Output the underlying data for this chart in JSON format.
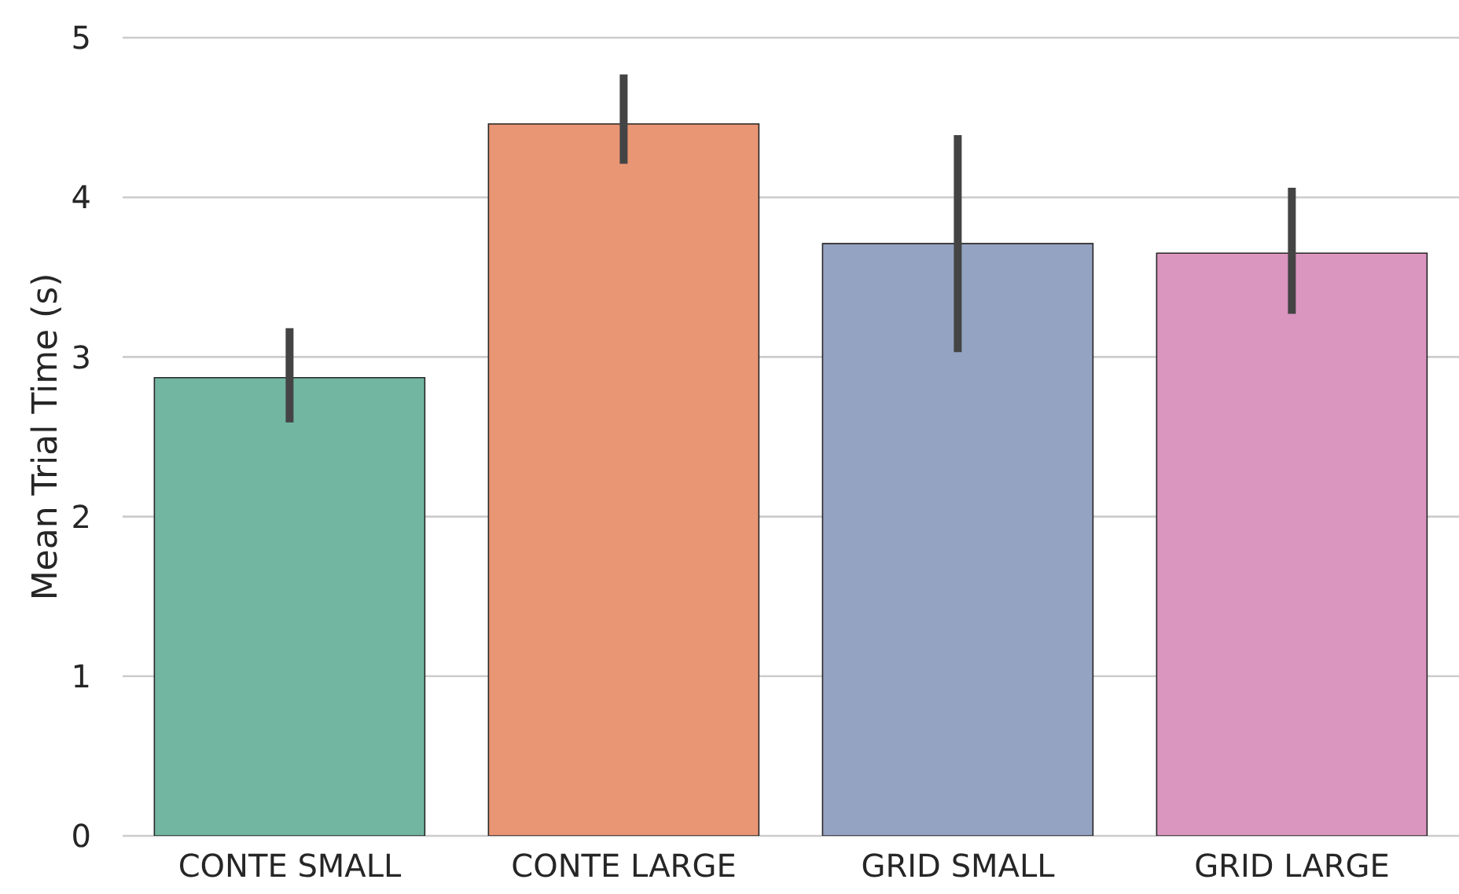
{
  "chart_data": {
    "type": "bar",
    "ylabel": "Mean Trial Time (s)",
    "categories": [
      "CONTE SMALL",
      "CONTE LARGE",
      "GRID SMALL",
      "GRID LARGE"
    ],
    "values": [
      2.87,
      4.46,
      3.71,
      3.65
    ],
    "colors": [
      "#72b6a1",
      "#e99675",
      "#95a3c3",
      "#db96c0"
    ],
    "errors": [
      [
        2.59,
        3.18
      ],
      [
        4.21,
        4.77
      ],
      [
        3.03,
        4.39
      ],
      [
        3.27,
        4.06
      ]
    ],
    "ylim": [
      0,
      5
    ],
    "yticks": [
      0,
      1,
      2,
      3,
      4,
      5
    ],
    "grid": "y"
  }
}
